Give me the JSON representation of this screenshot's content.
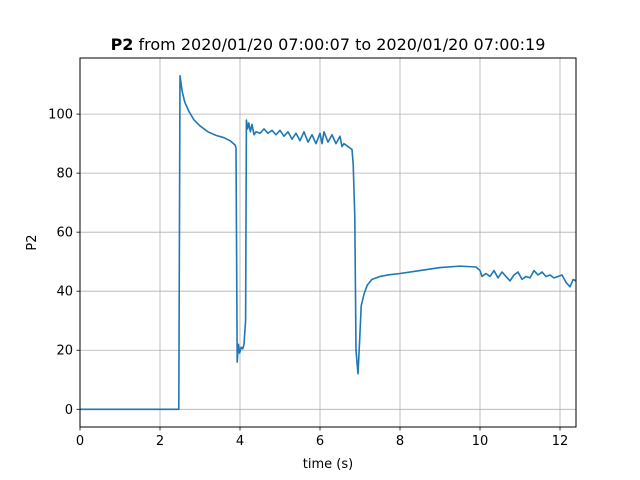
{
  "chart_data": {
    "type": "line",
    "title_bold": "P2",
    "title_rest": " from 2020/01/20 07:00:07 to 2020/01/20 07:00:19",
    "xlabel": "time (s)",
    "ylabel": "P2",
    "xlim": [
      0,
      12.4
    ],
    "ylim": [
      -6,
      119
    ],
    "xticks": [
      0,
      2,
      4,
      6,
      8,
      10,
      12
    ],
    "yticks": [
      0,
      20,
      40,
      60,
      80,
      100
    ],
    "grid": true,
    "line_color": "#1f77b4",
    "series": [
      {
        "points": [
          [
            0,
            0
          ],
          [
            2.45,
            0
          ],
          [
            2.47,
            0
          ],
          [
            2.5,
            113
          ],
          [
            2.55,
            108
          ],
          [
            2.62,
            104
          ],
          [
            2.72,
            101
          ],
          [
            2.85,
            98
          ],
          [
            3.0,
            96
          ],
          [
            3.2,
            94
          ],
          [
            3.4,
            92.8
          ],
          [
            3.6,
            92
          ],
          [
            3.75,
            91
          ],
          [
            3.88,
            89.5
          ],
          [
            3.9,
            88.5
          ],
          [
            3.93,
            16
          ],
          [
            3.96,
            22
          ],
          [
            3.99,
            19
          ],
          [
            4.03,
            21
          ],
          [
            4.07,
            20.5
          ],
          [
            4.1,
            22
          ],
          [
            4.14,
            30
          ],
          [
            4.16,
            98
          ],
          [
            4.19,
            95
          ],
          [
            4.22,
            97
          ],
          [
            4.26,
            94
          ],
          [
            4.3,
            96.5
          ],
          [
            4.35,
            93
          ],
          [
            4.4,
            94
          ],
          [
            4.5,
            93.5
          ],
          [
            4.6,
            95
          ],
          [
            4.7,
            93.5
          ],
          [
            4.8,
            94.5
          ],
          [
            4.9,
            93
          ],
          [
            5.0,
            94.5
          ],
          [
            5.1,
            92.5
          ],
          [
            5.2,
            94
          ],
          [
            5.3,
            91.5
          ],
          [
            5.4,
            93.5
          ],
          [
            5.5,
            91
          ],
          [
            5.6,
            94
          ],
          [
            5.7,
            90.5
          ],
          [
            5.8,
            93
          ],
          [
            5.9,
            90
          ],
          [
            6.0,
            93.5
          ],
          [
            6.05,
            90
          ],
          [
            6.1,
            94
          ],
          [
            6.2,
            90.5
          ],
          [
            6.3,
            93
          ],
          [
            6.4,
            90
          ],
          [
            6.5,
            92.5
          ],
          [
            6.55,
            89
          ],
          [
            6.6,
            90
          ],
          [
            6.7,
            89
          ],
          [
            6.8,
            88
          ],
          [
            6.83,
            83
          ],
          [
            6.87,
            65
          ],
          [
            6.9,
            20
          ],
          [
            6.95,
            12
          ],
          [
            6.99,
            23
          ],
          [
            7.03,
            35
          ],
          [
            7.1,
            39
          ],
          [
            7.18,
            42
          ],
          [
            7.3,
            44
          ],
          [
            7.5,
            45
          ],
          [
            7.7,
            45.5
          ],
          [
            8.0,
            46
          ],
          [
            8.5,
            47
          ],
          [
            9.0,
            48
          ],
          [
            9.5,
            48.5
          ],
          [
            9.9,
            48.2
          ],
          [
            10.0,
            47
          ],
          [
            10.05,
            45
          ],
          [
            10.15,
            46
          ],
          [
            10.25,
            45
          ],
          [
            10.35,
            47
          ],
          [
            10.45,
            44.5
          ],
          [
            10.55,
            46.5
          ],
          [
            10.65,
            45
          ],
          [
            10.75,
            43.5
          ],
          [
            10.85,
            45.5
          ],
          [
            10.95,
            46.5
          ],
          [
            11.05,
            44
          ],
          [
            11.15,
            45
          ],
          [
            11.25,
            44.5
          ],
          [
            11.35,
            47
          ],
          [
            11.45,
            45.5
          ],
          [
            11.55,
            46.5
          ],
          [
            11.65,
            45
          ],
          [
            11.75,
            45.5
          ],
          [
            11.85,
            44.5
          ],
          [
            11.95,
            45
          ],
          [
            12.05,
            45.5
          ],
          [
            12.15,
            43
          ],
          [
            12.25,
            41.5
          ],
          [
            12.33,
            44
          ],
          [
            12.4,
            43.5
          ]
        ]
      }
    ]
  }
}
